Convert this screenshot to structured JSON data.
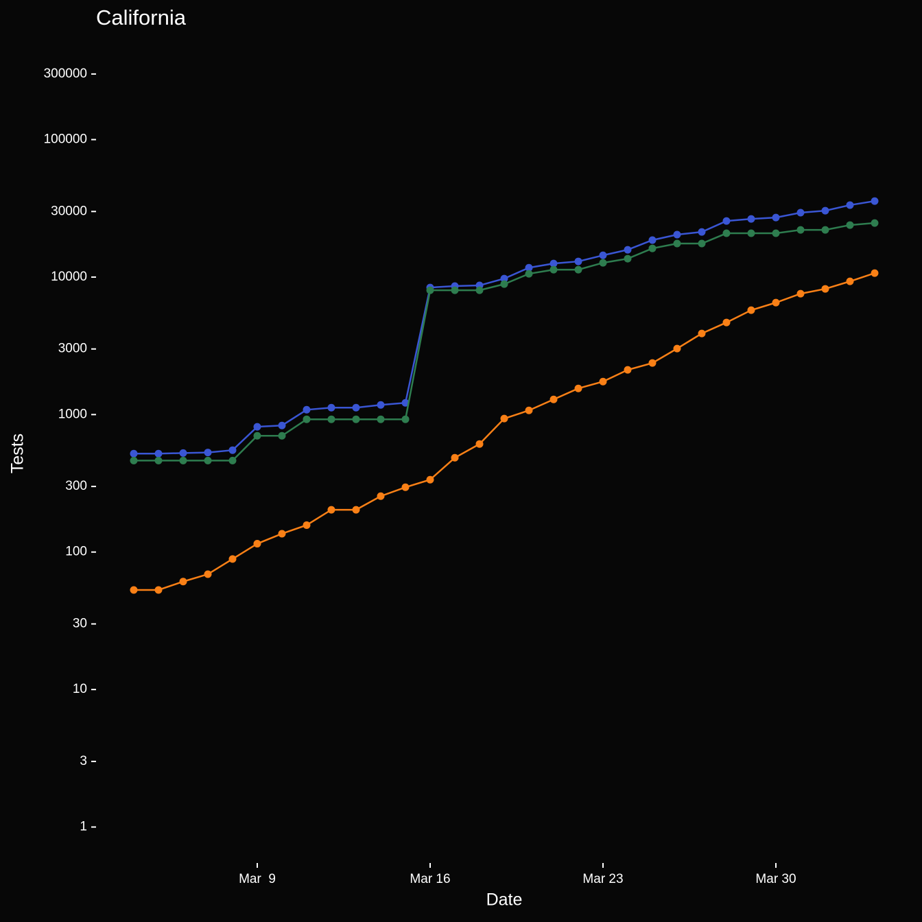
{
  "chart_data": {
    "type": "line",
    "title": "California",
    "xlabel": "Date",
    "ylabel": "Tests",
    "log_y": true,
    "x": [
      "Mar 4",
      "Mar 5",
      "Mar 6",
      "Mar 7",
      "Mar 8",
      "Mar 9",
      "Mar 10",
      "Mar 11",
      "Mar 12",
      "Mar 13",
      "Mar 14",
      "Mar 15",
      "Mar 16",
      "Mar 17",
      "Mar 18",
      "Mar 19",
      "Mar 20",
      "Mar 21",
      "Mar 22",
      "Mar 23",
      "Mar 24",
      "Mar 25",
      "Mar 26",
      "Mar 27",
      "Mar 28",
      "Mar 29",
      "Mar 30",
      "Mar 31",
      "Apr 1",
      "Apr 2",
      "Apr 3"
    ],
    "xticks": [
      {
        "value": "Mar 9",
        "label": "Mar  9"
      },
      "Mar 16",
      "Mar 23",
      "Mar 30"
    ],
    "ylim": [
      0.6,
      520000
    ],
    "yticks": [
      1,
      3,
      10,
      30,
      100,
      300,
      1000,
      3000,
      10000,
      30000,
      100000,
      300000
    ],
    "series": [
      {
        "color": "#3a56d4",
        "values": [
          520,
          520,
          525,
          530,
          551,
          815,
          833,
          1084,
          1122,
          1122,
          1175,
          1217,
          8400,
          8600,
          8700,
          9750,
          11700,
          12550,
          13000,
          14400,
          15800,
          18580,
          20360,
          21300,
          25600,
          26500,
          27100,
          29400,
          30400,
          33400,
          35700
        ]
      },
      {
        "color": "#2e7d4f",
        "values": [
          463,
          463,
          463,
          463,
          463,
          701,
          701,
          924,
          924,
          924,
          924,
          924,
          8020,
          8020,
          8020,
          8890,
          10570,
          11320,
          11320,
          12700,
          13610,
          16170,
          17530,
          17530,
          20830,
          20830,
          20830,
          22030,
          22030,
          23900,
          24730
        ]
      },
      {
        "color": "#f98016",
        "values": [
          53,
          53,
          61,
          69,
          89,
          115,
          136,
          157,
          203,
          203,
          255,
          296,
          336,
          485,
          611,
          935,
          1072,
          1288,
          1549,
          1738,
          2114,
          2371,
          3020,
          3890,
          4676,
          5745,
          6520,
          7570,
          8210,
          9310,
          10690
        ]
      }
    ]
  }
}
